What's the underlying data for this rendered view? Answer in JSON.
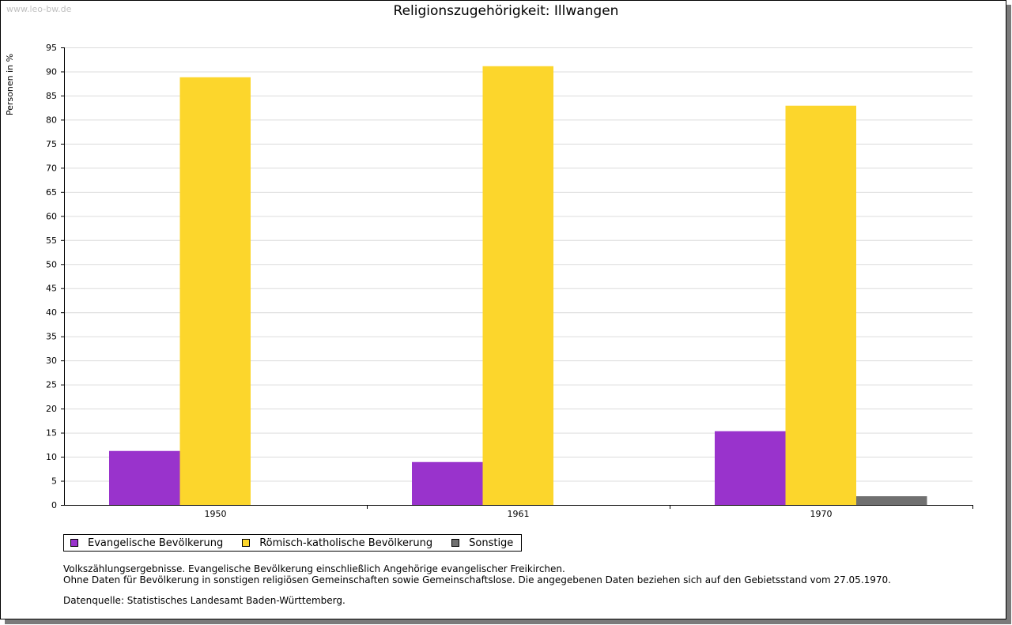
{
  "watermark": "www.leo-bw.de",
  "chart_data": {
    "type": "bar",
    "title": "Religionszugehörigkeit: Illwangen",
    "ylabel": "Personen in %",
    "xlabel": "",
    "ylim": [
      0,
      95
    ],
    "yticks": [
      0,
      5,
      10,
      15,
      20,
      25,
      30,
      35,
      40,
      45,
      50,
      55,
      60,
      65,
      70,
      75,
      80,
      85,
      90,
      95
    ],
    "categories": [
      "1950",
      "1961",
      "1970"
    ],
    "series": [
      {
        "name": "Evangelische Bevölkerung",
        "color": "#9933cc",
        "values": [
          11.2,
          8.9,
          15.3
        ]
      },
      {
        "name": "Römisch-katholische Bevölkerung",
        "color": "#fcd62c",
        "values": [
          88.8,
          91.1,
          82.9
        ]
      },
      {
        "name": "Sonstige",
        "color": "#707070",
        "values": [
          null,
          null,
          1.8
        ]
      }
    ],
    "legend_position": "bottom-left",
    "grid": true
  },
  "notes": {
    "line1": "Volkszählungsergebnisse. Evangelische Bevölkerung einschließlich Angehörige evangelischer Freikirchen.",
    "line2": "Ohne Daten für Bevölkerung in sonstigen religiösen Gemeinschaften sowie Gemeinschaftslose. Die angegebenen Daten beziehen sich auf den Gebietsstand vom 27.05.1970.",
    "source": "Datenquelle: Statistisches Landesamt Baden-Württemberg."
  }
}
